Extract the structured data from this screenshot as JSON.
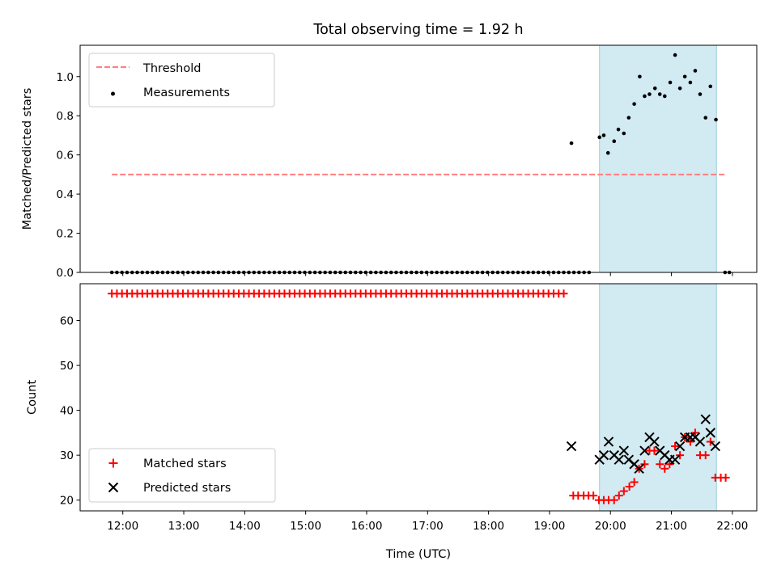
{
  "chart_data": {
    "title": "Total observing time = 1.92 h",
    "xlabel": "Time (UTC)",
    "x_ticks": [
      "12:00",
      "13:00",
      "14:00",
      "15:00",
      "16:00",
      "17:00",
      "18:00",
      "19:00",
      "20:00",
      "21:00",
      "22:00"
    ],
    "x_range_hours": [
      11.3,
      22.4
    ],
    "highlight_span_hours": [
      19.82,
      21.74
    ],
    "highlight_color": "#add8e6",
    "panels": [
      {
        "type": "scatter",
        "ylabel": "Matched/Predicted stars",
        "ylim": [
          0,
          1.16
        ],
        "y_ticks": [
          "0.0",
          "0.2",
          "0.4",
          "0.6",
          "0.8",
          "1.0"
        ],
        "threshold": {
          "name": "Threshold",
          "value": 0.5,
          "x_range_hours": [
            11.82,
            21.88
          ],
          "color": "#ff7f7f"
        },
        "measurements": {
          "name": "Measurements",
          "color": "#000000",
          "zero_run": {
            "start": 11.82,
            "end": 19.72,
            "step": 0.0833,
            "value": 0
          },
          "points": [
            [
              19.36,
              0.66
            ],
            [
              19.82,
              0.69
            ],
            [
              19.89,
              0.7
            ],
            [
              19.96,
              0.61
            ],
            [
              20.06,
              0.67
            ],
            [
              20.13,
              0.73
            ],
            [
              20.22,
              0.71
            ],
            [
              20.3,
              0.79
            ],
            [
              20.39,
              0.86
            ],
            [
              20.48,
              1.0
            ],
            [
              20.56,
              0.9
            ],
            [
              20.64,
              0.91
            ],
            [
              20.73,
              0.94
            ],
            [
              20.81,
              0.91
            ],
            [
              20.89,
              0.9
            ],
            [
              20.98,
              0.97
            ],
            [
              21.06,
              1.11
            ],
            [
              21.14,
              0.94
            ],
            [
              21.22,
              1.0
            ],
            [
              21.31,
              0.97
            ],
            [
              21.39,
              1.03
            ],
            [
              21.47,
              0.91
            ],
            [
              21.56,
              0.79
            ],
            [
              21.64,
              0.95
            ],
            [
              21.73,
              0.78
            ],
            [
              21.88,
              0.0
            ],
            [
              21.95,
              0.0
            ]
          ]
        }
      },
      {
        "type": "scatter",
        "ylabel": "Count",
        "ylim": [
          17.6,
          68.2
        ],
        "y_ticks": [
          "20",
          "30",
          "40",
          "50",
          "60"
        ],
        "matched": {
          "name": "Matched stars",
          "color": "#ff0000",
          "run": {
            "start": 11.82,
            "end": 19.3,
            "step": 0.0833,
            "value": 66
          },
          "points": [
            [
              19.39,
              21
            ],
            [
              19.47,
              21
            ],
            [
              19.56,
              21
            ],
            [
              19.64,
              21
            ],
            [
              19.72,
              21
            ],
            [
              19.81,
              20
            ],
            [
              19.89,
              20
            ],
            [
              19.97,
              20
            ],
            [
              20.06,
              20
            ],
            [
              20.14,
              21
            ],
            [
              20.22,
              22
            ],
            [
              20.31,
              23
            ],
            [
              20.39,
              24
            ],
            [
              20.47,
              27
            ],
            [
              20.56,
              28
            ],
            [
              20.64,
              31
            ],
            [
              20.72,
              31
            ],
            [
              20.81,
              28
            ],
            [
              20.89,
              27
            ],
            [
              20.97,
              28
            ],
            [
              21.06,
              32
            ],
            [
              21.14,
              30
            ],
            [
              21.22,
              34
            ],
            [
              21.31,
              33
            ],
            [
              21.39,
              35
            ],
            [
              21.47,
              30
            ],
            [
              21.56,
              30
            ],
            [
              21.64,
              33
            ],
            [
              21.72,
              25
            ],
            [
              21.81,
              25
            ],
            [
              21.89,
              25
            ]
          ]
        },
        "predicted": {
          "name": "Predicted stars",
          "color": "#000000",
          "points": [
            [
              19.36,
              32
            ],
            [
              19.82,
              29
            ],
            [
              19.89,
              30
            ],
            [
              19.97,
              33
            ],
            [
              20.06,
              30
            ],
            [
              20.14,
              29
            ],
            [
              20.22,
              31
            ],
            [
              20.3,
              29
            ],
            [
              20.39,
              28
            ],
            [
              20.47,
              27
            ],
            [
              20.56,
              31
            ],
            [
              20.64,
              34
            ],
            [
              20.72,
              33
            ],
            [
              20.81,
              31
            ],
            [
              20.89,
              30
            ],
            [
              20.97,
              29
            ],
            [
              21.06,
              29
            ],
            [
              21.14,
              32
            ],
            [
              21.22,
              34
            ],
            [
              21.31,
              34
            ],
            [
              21.39,
              34
            ],
            [
              21.47,
              33
            ],
            [
              21.56,
              38
            ],
            [
              21.64,
              35
            ],
            [
              21.72,
              32
            ]
          ]
        }
      }
    ],
    "legend_top": {
      "placement": "upper-left",
      "entries": [
        "Threshold",
        "Measurements"
      ]
    },
    "legend_bottom": {
      "placement": "lower-left",
      "entries": [
        "Matched stars",
        "Predicted stars"
      ]
    }
  }
}
